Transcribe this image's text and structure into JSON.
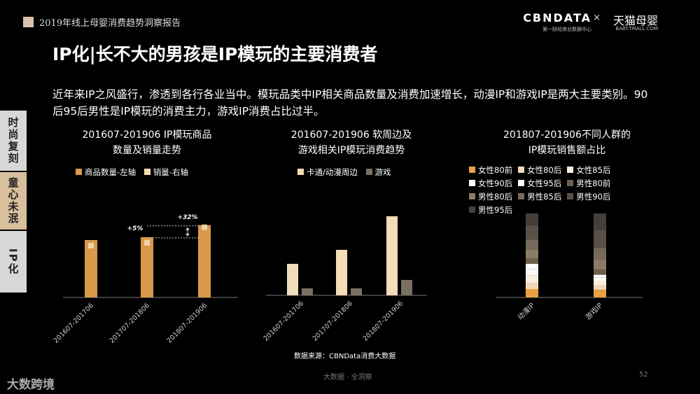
{
  "header": {
    "report_title": "2019年线上母婴消费趋势洞察报告",
    "brand_left": "CBNDATA",
    "brand_left_sub": "第一财经商业数据中心",
    "brand_sep": "×",
    "brand_right": "天猫母婴",
    "brand_right_sub": "BABY.TMALL.COM"
  },
  "page_title": "IP化|长不大的男孩是IP模玩的主要消费者",
  "intro": "近年来IP之风盛行，渗透到各行各业当中。模玩品类中IP相关商品数量及消费加速增长，动漫IP和游戏IP是两大主要类别。90后95后男性是IP模玩的消费主力，游戏IP消费占比过半。",
  "side_tabs": [
    "时尚复刻",
    "童心未泯",
    "IP化"
  ],
  "colors": {
    "orange": "#d89a4a",
    "cream": "#f3dcb8",
    "gray": "#7a7064"
  },
  "chart_data": [
    {
      "type": "bar",
      "title_line1": "201607-201906  IP模玩商品",
      "title_line2": "数量及销量走势",
      "categories": [
        "201607-201706",
        "201707-201806",
        "201807-201906"
      ],
      "series": [
        {
          "name": "商品数量-左轴",
          "color": "#d89a4a",
          "values": [
            100,
            105,
            126
          ]
        },
        {
          "name": "销量-右轴",
          "color": "#f3dcb8",
          "values": [
            100,
            105,
            132
          ]
        }
      ],
      "annotations": [
        "+5%",
        "+32%"
      ]
    },
    {
      "type": "bar",
      "title_line1": "201607-201906 软周边及",
      "title_line2": "游戏相关IP模玩消费趋势",
      "categories": [
        "201607-201706",
        "201707-201806",
        "201807-201906"
      ],
      "series": [
        {
          "name": "卡通/动漫周边",
          "color": "#f3dcb8",
          "values": [
            45,
            65,
            113
          ]
        },
        {
          "name": "游戏",
          "color": "#7a7064",
          "values": [
            10,
            10,
            22
          ]
        }
      ]
    },
    {
      "type": "bar",
      "stacked": true,
      "title_line1": "201807-201906不同人群的",
      "title_line2": "IP模玩销售额占比",
      "categories": [
        "动漫IP",
        "游戏IP"
      ],
      "series": [
        {
          "name": "女性80前",
          "color": "#e8a243",
          "values": [
            10,
            9
          ]
        },
        {
          "name": "女性80后",
          "color": "#f2d8b6",
          "values": [
            7,
            6
          ]
        },
        {
          "name": "女性85后",
          "color": "#fbeedd",
          "values": [
            9,
            5
          ]
        },
        {
          "name": "女性90后",
          "color": "#fffaf2",
          "values": [
            8,
            4
          ]
        },
        {
          "name": "女性95后",
          "color": "#ffffff",
          "values": [
            6,
            3
          ]
        },
        {
          "name": "男性80前",
          "color": "#6e5e4c",
          "values": [
            6,
            6
          ]
        },
        {
          "name": "男性80后",
          "color": "#8a7a66",
          "values": [
            11,
            12
          ]
        },
        {
          "name": "男性85后",
          "color": "#766a5c",
          "values": [
            12,
            14
          ]
        },
        {
          "name": "男性90后",
          "color": "#5a5048",
          "values": [
            17,
            21
          ]
        },
        {
          "name": "男性95后",
          "color": "#463f39",
          "values": [
            14,
            20
          ]
        }
      ]
    }
  ],
  "source": "数据来源：CBNData消费大数据",
  "footer_center": "大数据 · 全洞察",
  "page_number": "52",
  "bottom_logo": "大数跨境"
}
